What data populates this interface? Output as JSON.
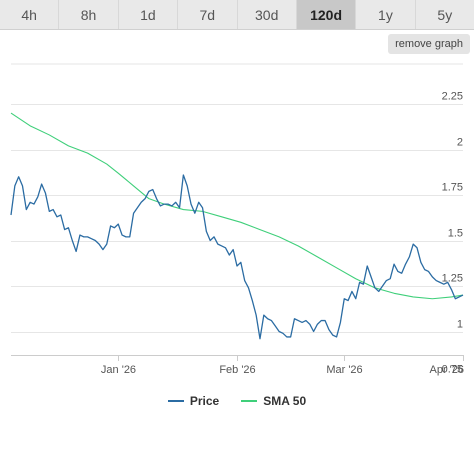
{
  "range_tabs": [
    {
      "label": "4h",
      "active": false
    },
    {
      "label": "8h",
      "active": false
    },
    {
      "label": "1d",
      "active": false
    },
    {
      "label": "7d",
      "active": false
    },
    {
      "label": "30d",
      "active": false
    },
    {
      "label": "120d",
      "active": true
    },
    {
      "label": "1y",
      "active": false
    },
    {
      "label": "5y",
      "active": false
    }
  ],
  "remove_graph_label": "remove graph",
  "colors": {
    "price": "#2b6ca3",
    "sma": "#3fcf7a",
    "grid": "#e6e6e6",
    "active_tab": "#c8c8c8"
  },
  "legend": {
    "price_label": "Price",
    "sma_label": "SMA 50"
  },
  "chart_data": {
    "type": "line",
    "x_ticks": [
      {
        "label": "Jan '26",
        "day": 28
      },
      {
        "label": "Feb '26",
        "day": 59
      },
      {
        "label": "Mar '26",
        "day": 87
      },
      {
        "label": "Apr '26",
        "day": 118
      }
    ],
    "y_ticks": [
      "0.75",
      "1",
      "1.25",
      "1.5",
      "1.75",
      "2",
      "2.25"
    ],
    "ylim": [
      0.75,
      2.25
    ],
    "xlim": [
      0,
      118
    ],
    "grid": true,
    "legend_position": "bottom-center",
    "series": [
      {
        "name": "Price",
        "points": [
          [
            0,
            1.64
          ],
          [
            1,
            1.8
          ],
          [
            2,
            1.85
          ],
          [
            3,
            1.8
          ],
          [
            4,
            1.67
          ],
          [
            5,
            1.71
          ],
          [
            6,
            1.7
          ],
          [
            7,
            1.74
          ],
          [
            8,
            1.81
          ],
          [
            9,
            1.76
          ],
          [
            10,
            1.66
          ],
          [
            11,
            1.67
          ],
          [
            12,
            1.63
          ],
          [
            13,
            1.64
          ],
          [
            14,
            1.56
          ],
          [
            15,
            1.57
          ],
          [
            16,
            1.5
          ],
          [
            17,
            1.44
          ],
          [
            18,
            1.53
          ],
          [
            19,
            1.52
          ],
          [
            20,
            1.52
          ],
          [
            21,
            1.51
          ],
          [
            22,
            1.5
          ],
          [
            23,
            1.48
          ],
          [
            24,
            1.45
          ],
          [
            25,
            1.48
          ],
          [
            26,
            1.58
          ],
          [
            27,
            1.57
          ],
          [
            28,
            1.59
          ],
          [
            29,
            1.53
          ],
          [
            30,
            1.52
          ],
          [
            31,
            1.52
          ],
          [
            32,
            1.65
          ],
          [
            33,
            1.68
          ],
          [
            34,
            1.71
          ],
          [
            35,
            1.73
          ],
          [
            36,
            1.77
          ],
          [
            37,
            1.78
          ],
          [
            38,
            1.73
          ],
          [
            39,
            1.69
          ],
          [
            40,
            1.7
          ],
          [
            41,
            1.7
          ],
          [
            42,
            1.69
          ],
          [
            43,
            1.71
          ],
          [
            44,
            1.68
          ],
          [
            45,
            1.86
          ],
          [
            46,
            1.8
          ],
          [
            47,
            1.7
          ],
          [
            48,
            1.65
          ],
          [
            49,
            1.71
          ],
          [
            50,
            1.68
          ],
          [
            51,
            1.55
          ],
          [
            52,
            1.5
          ],
          [
            53,
            1.52
          ],
          [
            54,
            1.48
          ],
          [
            55,
            1.47
          ],
          [
            56,
            1.46
          ],
          [
            57,
            1.42
          ],
          [
            58,
            1.45
          ],
          [
            59,
            1.36
          ],
          [
            60,
            1.38
          ],
          [
            61,
            1.28
          ],
          [
            62,
            1.24
          ],
          [
            63,
            1.17
          ],
          [
            64,
            1.09
          ],
          [
            65,
            0.96
          ],
          [
            66,
            1.09
          ],
          [
            67,
            1.07
          ],
          [
            68,
            1.06
          ],
          [
            69,
            1.03
          ],
          [
            70,
            1.0
          ],
          [
            71,
            0.99
          ],
          [
            72,
            0.97
          ],
          [
            73,
            0.97
          ],
          [
            74,
            1.07
          ],
          [
            75,
            1.06
          ],
          [
            76,
            1.05
          ],
          [
            77,
            1.06
          ],
          [
            78,
            1.04
          ],
          [
            79,
            1.0
          ],
          [
            80,
            1.04
          ],
          [
            81,
            1.06
          ],
          [
            82,
            1.06
          ],
          [
            83,
            1.01
          ],
          [
            84,
            0.98
          ],
          [
            85,
            0.97
          ],
          [
            86,
            1.05
          ],
          [
            87,
            1.18
          ],
          [
            88,
            1.17
          ],
          [
            89,
            1.22
          ],
          [
            90,
            1.18
          ],
          [
            91,
            1.27
          ],
          [
            92,
            1.26
          ],
          [
            93,
            1.36
          ],
          [
            94,
            1.3
          ],
          [
            95,
            1.24
          ],
          [
            96,
            1.22
          ],
          [
            97,
            1.25
          ],
          [
            98,
            1.28
          ],
          [
            99,
            1.29
          ],
          [
            100,
            1.37
          ],
          [
            101,
            1.33
          ],
          [
            102,
            1.32
          ],
          [
            103,
            1.37
          ],
          [
            104,
            1.41
          ],
          [
            105,
            1.48
          ],
          [
            106,
            1.46
          ],
          [
            107,
            1.38
          ],
          [
            108,
            1.34
          ],
          [
            109,
            1.33
          ],
          [
            110,
            1.3
          ],
          [
            111,
            1.28
          ],
          [
            112,
            1.27
          ],
          [
            113,
            1.26
          ],
          [
            114,
            1.27
          ],
          [
            115,
            1.23
          ],
          [
            116,
            1.18
          ],
          [
            117,
            1.19
          ],
          [
            118,
            1.2
          ]
        ]
      },
      {
        "name": "SMA 50",
        "points": [
          [
            0,
            2.2
          ],
          [
            5,
            2.13
          ],
          [
            10,
            2.08
          ],
          [
            15,
            2.02
          ],
          [
            20,
            1.98
          ],
          [
            25,
            1.92
          ],
          [
            28,
            1.87
          ],
          [
            32,
            1.8
          ],
          [
            36,
            1.73
          ],
          [
            40,
            1.7
          ],
          [
            45,
            1.67
          ],
          [
            50,
            1.66
          ],
          [
            55,
            1.63
          ],
          [
            60,
            1.6
          ],
          [
            65,
            1.56
          ],
          [
            70,
            1.52
          ],
          [
            75,
            1.47
          ],
          [
            80,
            1.41
          ],
          [
            85,
            1.35
          ],
          [
            90,
            1.29
          ],
          [
            95,
            1.24
          ],
          [
            100,
            1.21
          ],
          [
            105,
            1.19
          ],
          [
            110,
            1.18
          ],
          [
            115,
            1.19
          ],
          [
            118,
            1.2
          ]
        ]
      }
    ]
  }
}
